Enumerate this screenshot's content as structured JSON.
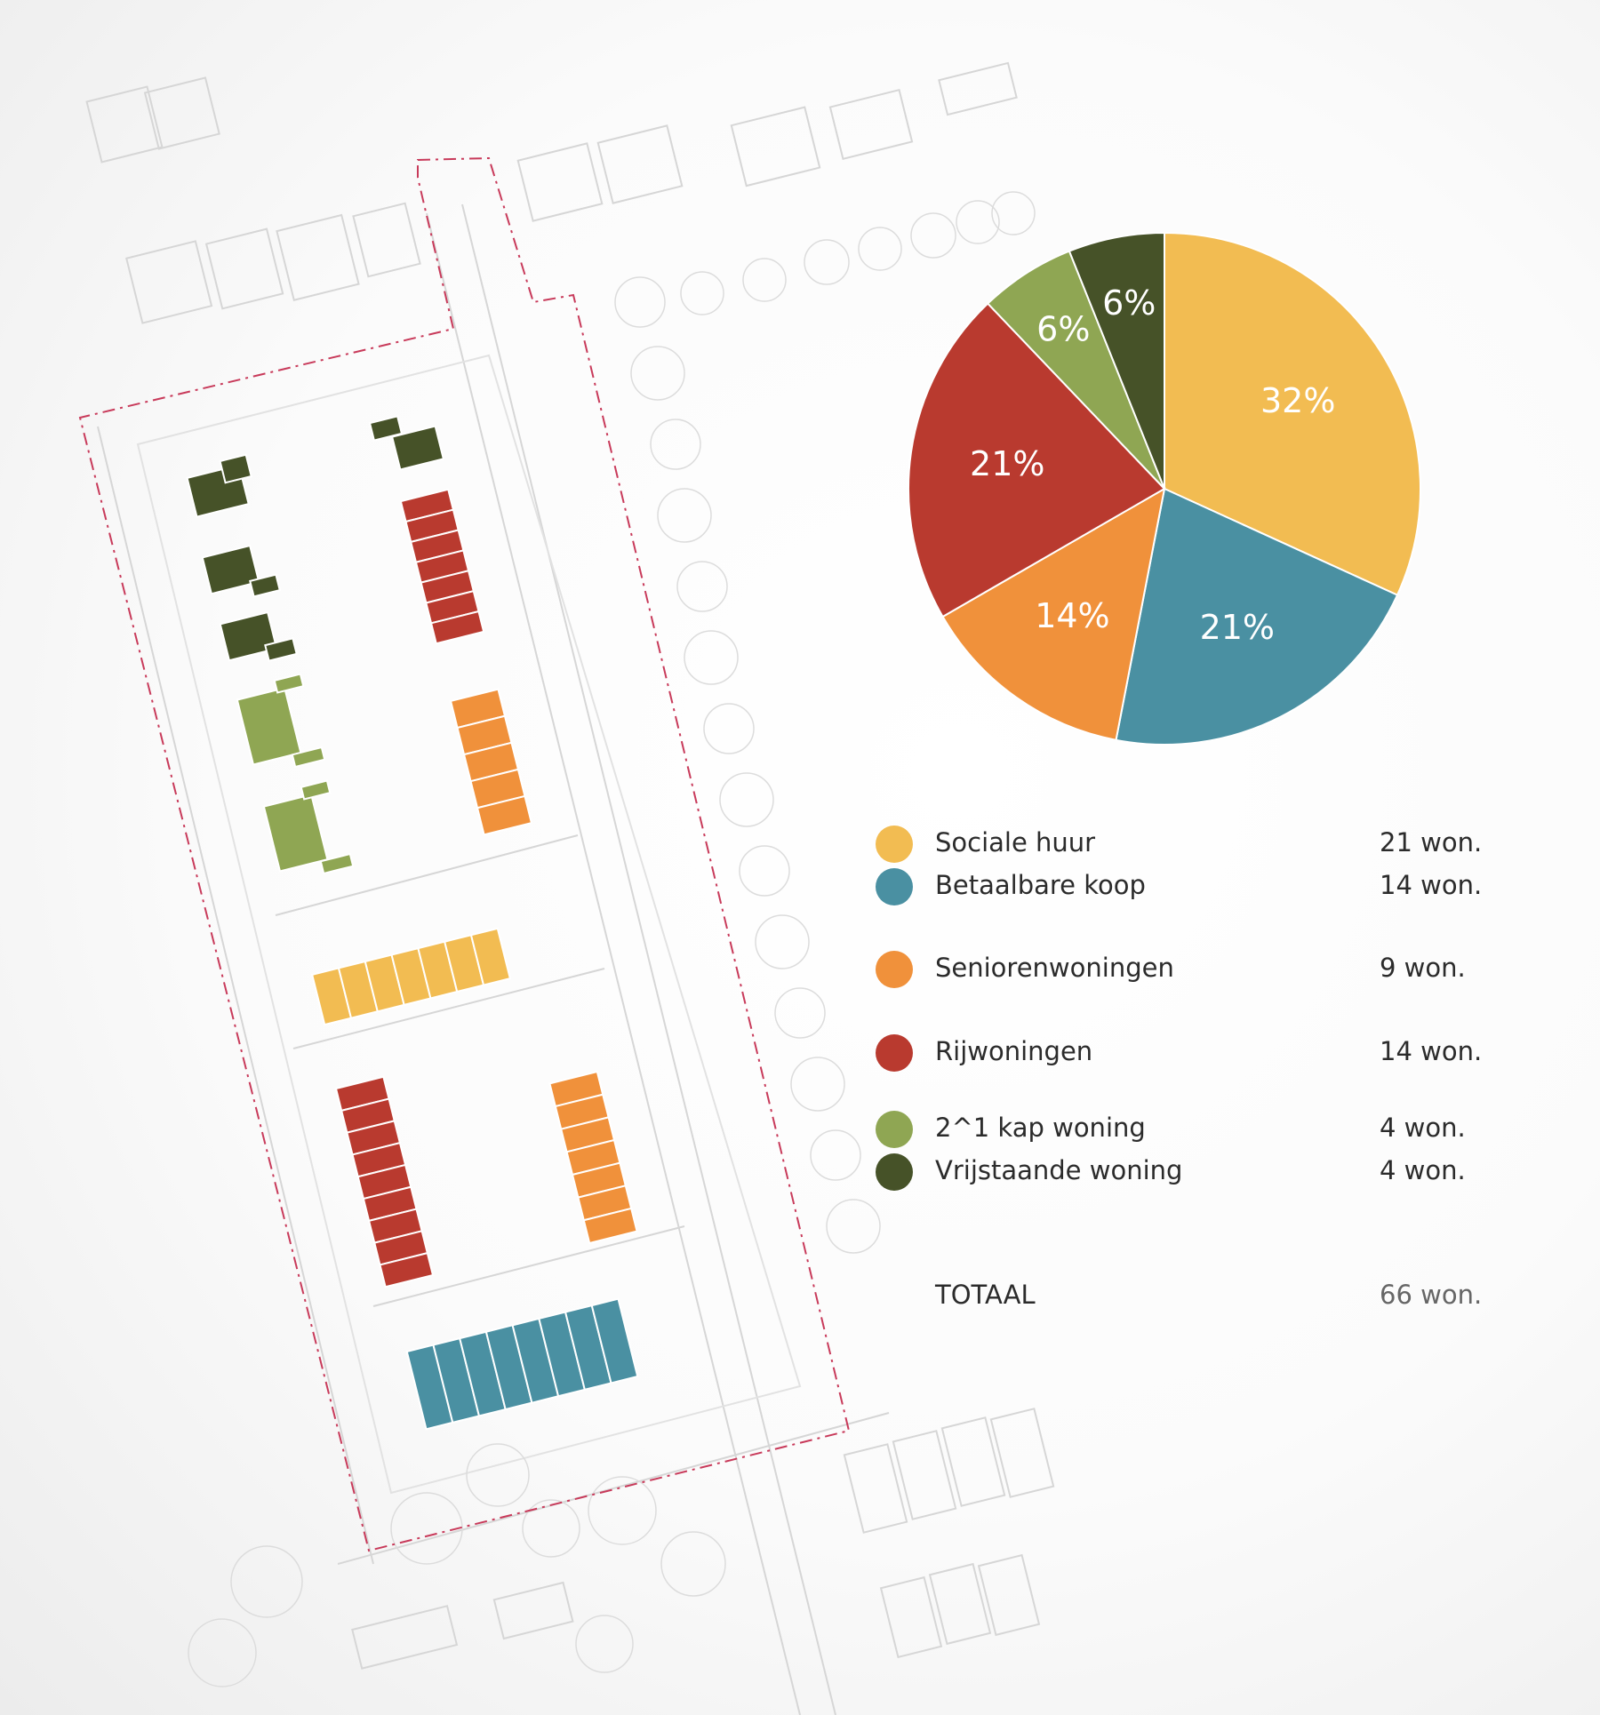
{
  "chart_data": {
    "type": "pie",
    "slices": [
      {
        "label": "Sociale huur",
        "value": 21,
        "percent_label": "32%",
        "color": "#F2BC52"
      },
      {
        "label": "Betaalbare koop",
        "value": 14,
        "percent_label": "21%",
        "color": "#4A90A2"
      },
      {
        "label": "Seniorenwoningen",
        "value": 9,
        "percent_label": "14%",
        "color": "#F0913B"
      },
      {
        "label": "Rijwoningen",
        "value": 14,
        "percent_label": "21%",
        "color": "#B93A2F"
      },
      {
        "label": "2^1 kap woning",
        "value": 4,
        "percent_label": "6%",
        "color": "#8FA653"
      },
      {
        "label": "Vrijstaande woning",
        "value": 4,
        "percent_label": "6%",
        "color": "#465228"
      }
    ],
    "legend": [
      {
        "label": "Sociale huur",
        "count": "21 won.",
        "color": "#F2BC52"
      },
      {
        "label": "Betaalbare koop",
        "count": "14 won.",
        "color": "#4A90A2"
      },
      {
        "label": "Seniorenwoningen",
        "count": "9 won.",
        "color": "#F0913B"
      },
      {
        "label": "Rijwoningen",
        "count": "14 won.",
        "color": "#B93A2F"
      },
      {
        "label": "2^1 kap woning",
        "count": "4 won.",
        "color": "#8FA653"
      },
      {
        "label": "Vrijstaande woning",
        "count": "4 won.",
        "color": "#465228"
      }
    ],
    "total": {
      "label": "TOTAAL",
      "count": "66 won."
    }
  }
}
